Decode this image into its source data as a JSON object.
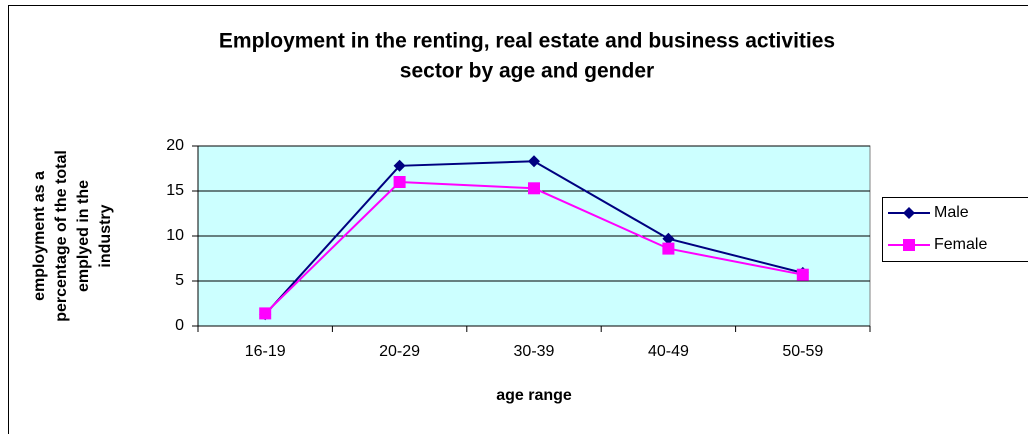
{
  "chart_data": {
    "type": "line",
    "title": [
      "Employment in the renting, real estate and business activities",
      "sector by age and gender"
    ],
    "xlabel": "age range",
    "ylabel": [
      "employment as a",
      "percentage of the total",
      "emplyed in the",
      "industry"
    ],
    "categories": [
      "16-19",
      "20-29",
      "30-39",
      "40-49",
      "50-59"
    ],
    "series": [
      {
        "name": "Male",
        "color": "#000080",
        "marker": "diamond",
        "values": [
          1.3,
          17.8,
          18.3,
          9.7,
          5.9
        ]
      },
      {
        "name": "Female",
        "color": "#ff00ff",
        "marker": "square",
        "values": [
          1.4,
          16.0,
          15.3,
          8.6,
          5.7
        ]
      }
    ],
    "ylim": [
      0,
      20
    ],
    "yticks": [
      0,
      5,
      10,
      15,
      20
    ],
    "grid": true,
    "legend": "right"
  }
}
